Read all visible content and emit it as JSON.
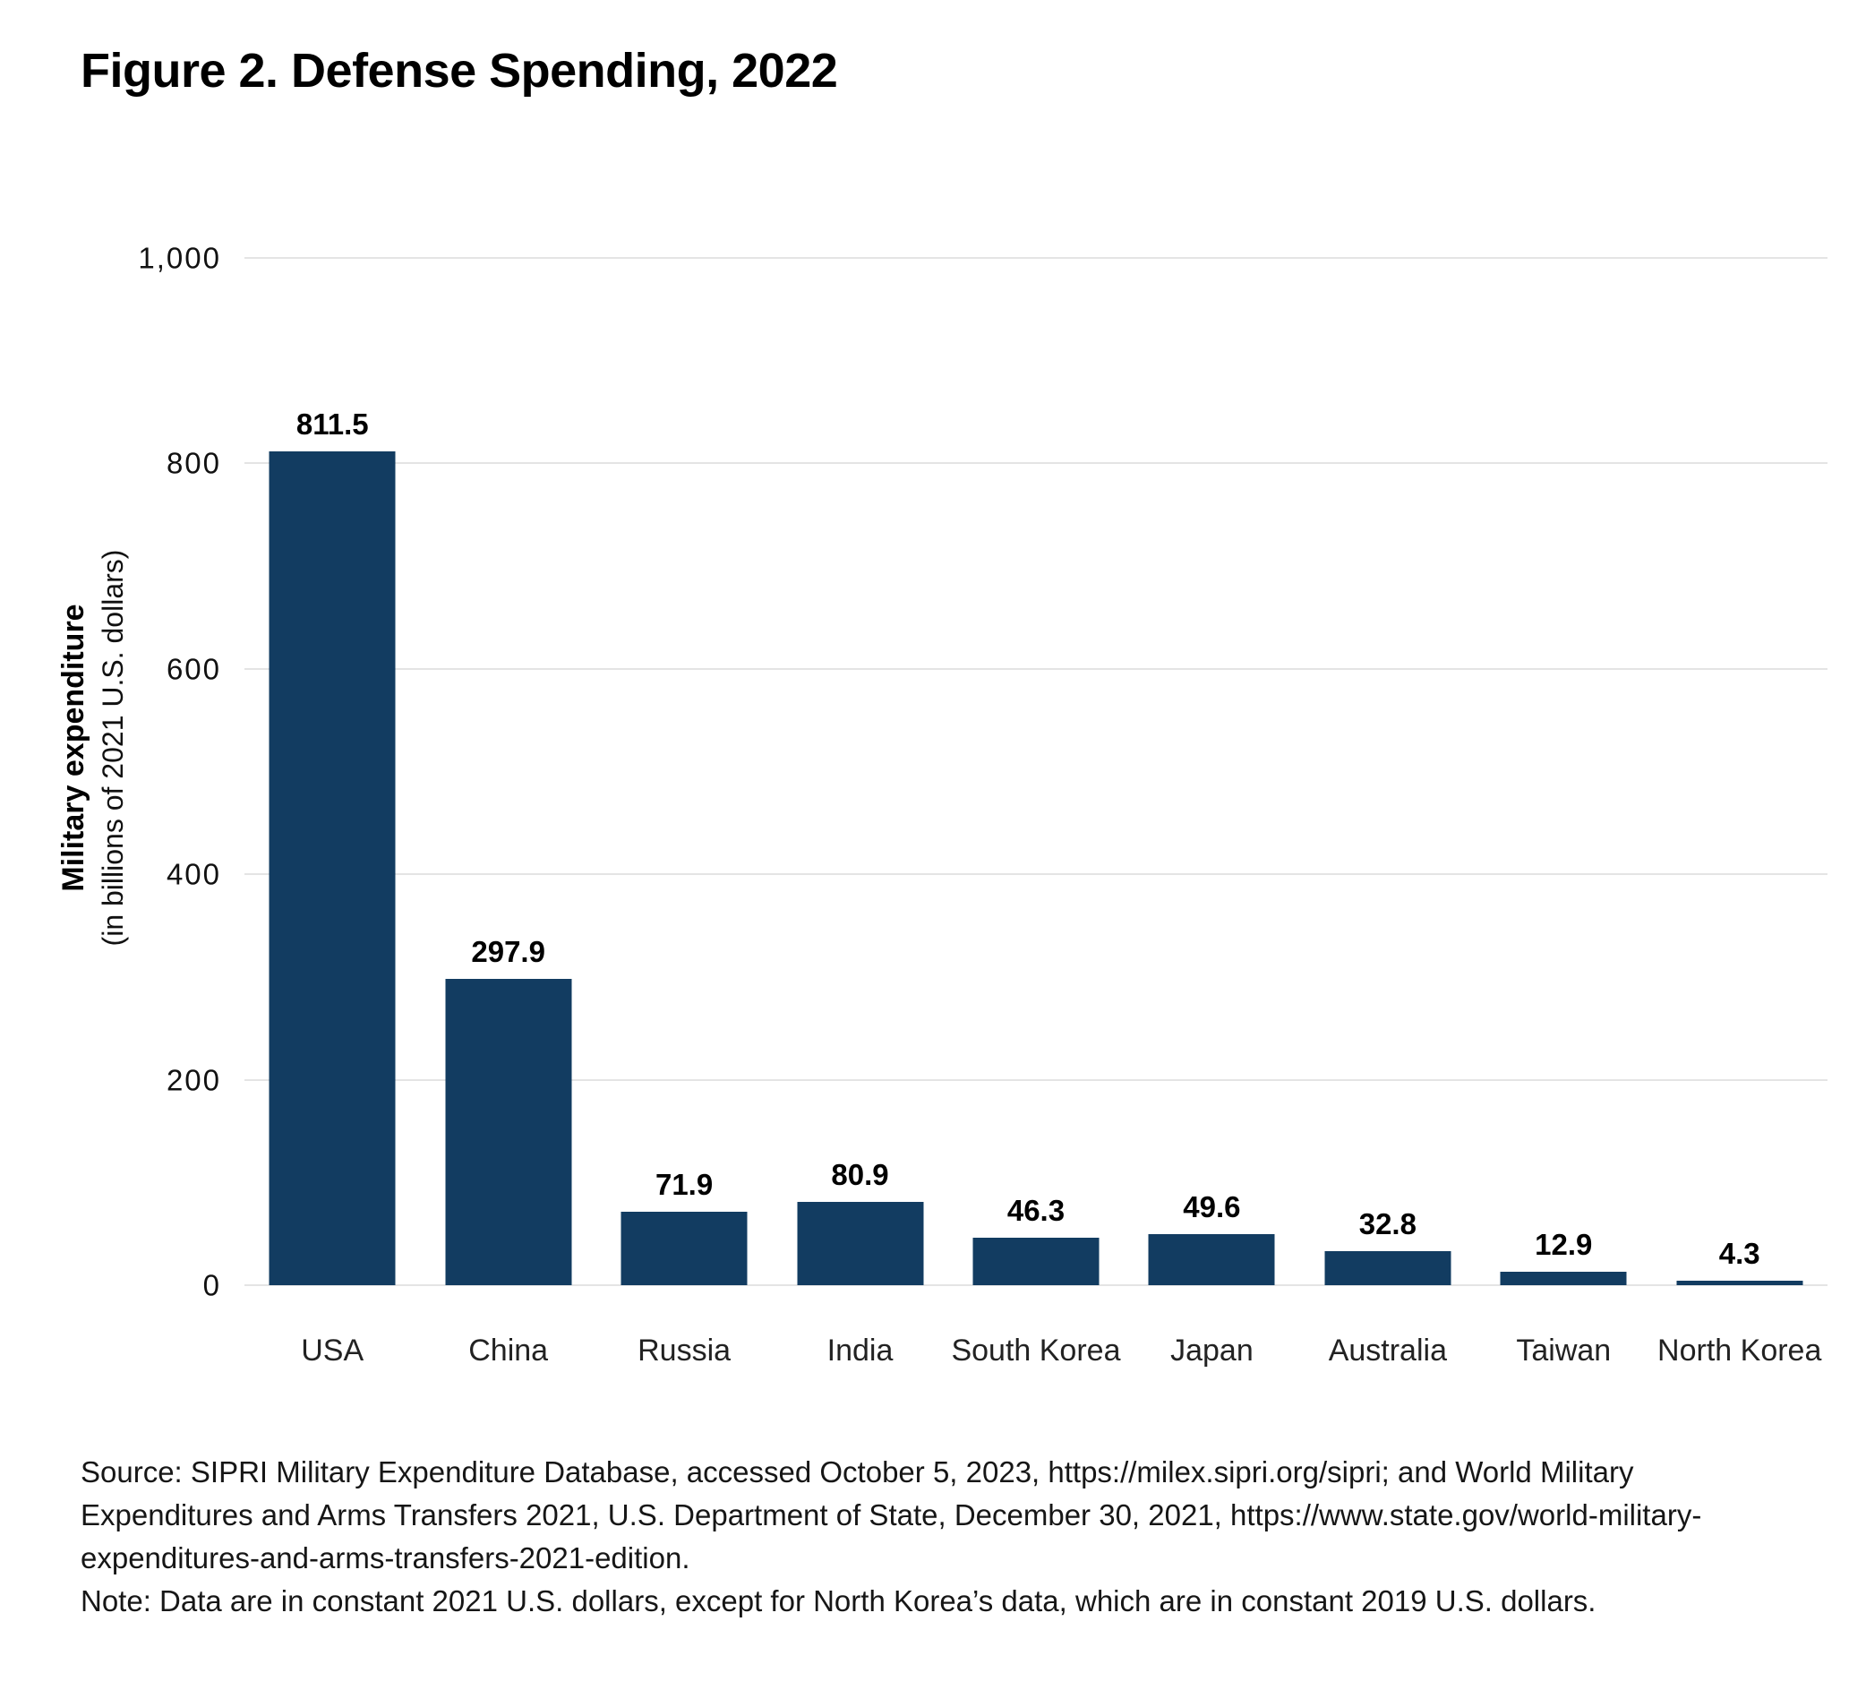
{
  "figure": {
    "title": "Figure 2. Defense Spending, 2022"
  },
  "chart_data": {
    "type": "bar",
    "title": "Figure 2. Defense Spending, 2022",
    "categories": [
      "USA",
      "China",
      "Russia",
      "India",
      "South Korea",
      "Japan",
      "Australia",
      "Taiwan",
      "North Korea"
    ],
    "values": [
      811.5,
      297.9,
      71.9,
      80.9,
      46.3,
      49.6,
      32.8,
      12.9,
      4.3
    ],
    "bar_labels": [
      "811.5",
      "297.9",
      "71.9",
      "80.9",
      "46.3",
      "49.6",
      "32.8",
      "12.9",
      "4.3"
    ],
    "xlabel": "",
    "ylabel_bold": "Military expenditure",
    "ylabel_sub": "(in billions of 2021 U.S. dollars)",
    "ylim": [
      0,
      1000
    ],
    "yticks": [
      0,
      200,
      400,
      600,
      800,
      1000
    ],
    "ytick_labels": [
      "0",
      "200",
      "400",
      "600",
      "800",
      "1,000"
    ],
    "grid": true,
    "legend": "none",
    "bar_color": "#123C61",
    "grid_color": "#E4E4E4"
  },
  "footer": {
    "source_lines": [
      "Source: SIPRI Military Expenditure Database, accessed October 5, 2023, https://milex.sipri.org/sipri; and World Military",
      "Expenditures and Arms Transfers 2021, U.S. Department of State, December 30, 2021, https://www.state.gov/world-military-",
      "expenditures-and-arms-transfers-2021-edition."
    ],
    "note_line": "Note: Data are in constant 2021 U.S. dollars, except for North Korea’s data, which are in constant 2019 U.S. dollars."
  }
}
